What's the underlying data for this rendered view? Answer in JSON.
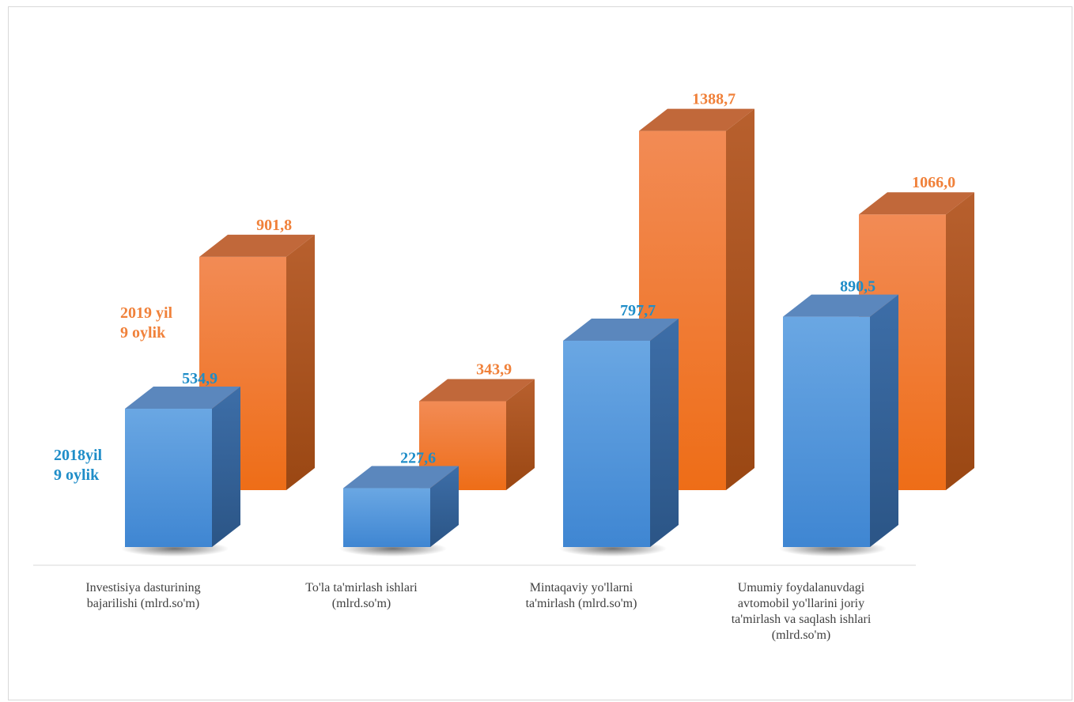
{
  "chart_data": {
    "type": "bar",
    "title": "",
    "xlabel": "",
    "ylabel": "",
    "categories": [
      "Investisiya dasturining\nbajarilishi (mlrd.so'm)",
      "To'la ta'mirlash ishlari\n(mlrd.so'm)",
      "Mintaqaviy yo'llarni\nta'mirlash (mlrd.so'm)",
      "Umumiy foydalanuvdagi\navtomobil yo'llarini  joriy\nta'mirlash  va saqlash ishlari\n(mlrd.so'm)"
    ],
    "series": [
      {
        "name": "2018yil\n9 oylik",
        "values": [
          534.9,
          227.6,
          797.7,
          890.5
        ],
        "labels": [
          "534,9",
          "227,6",
          "797,7",
          "890,5"
        ],
        "color": "#4a8fd6"
      },
      {
        "name": "2019 yil\n9 oylik",
        "values": [
          901.8,
          343.9,
          1388.7,
          1066.0
        ],
        "labels": [
          "901,8",
          "343,9",
          "1388,7",
          "1066,0"
        ],
        "color": "#f07a2a"
      }
    ],
    "grid": false,
    "legend": "inline-left"
  },
  "colors": {
    "blue_label": "#1f8dc8",
    "orange_label": "#f0813a",
    "axis": "#d9d9d9"
  }
}
